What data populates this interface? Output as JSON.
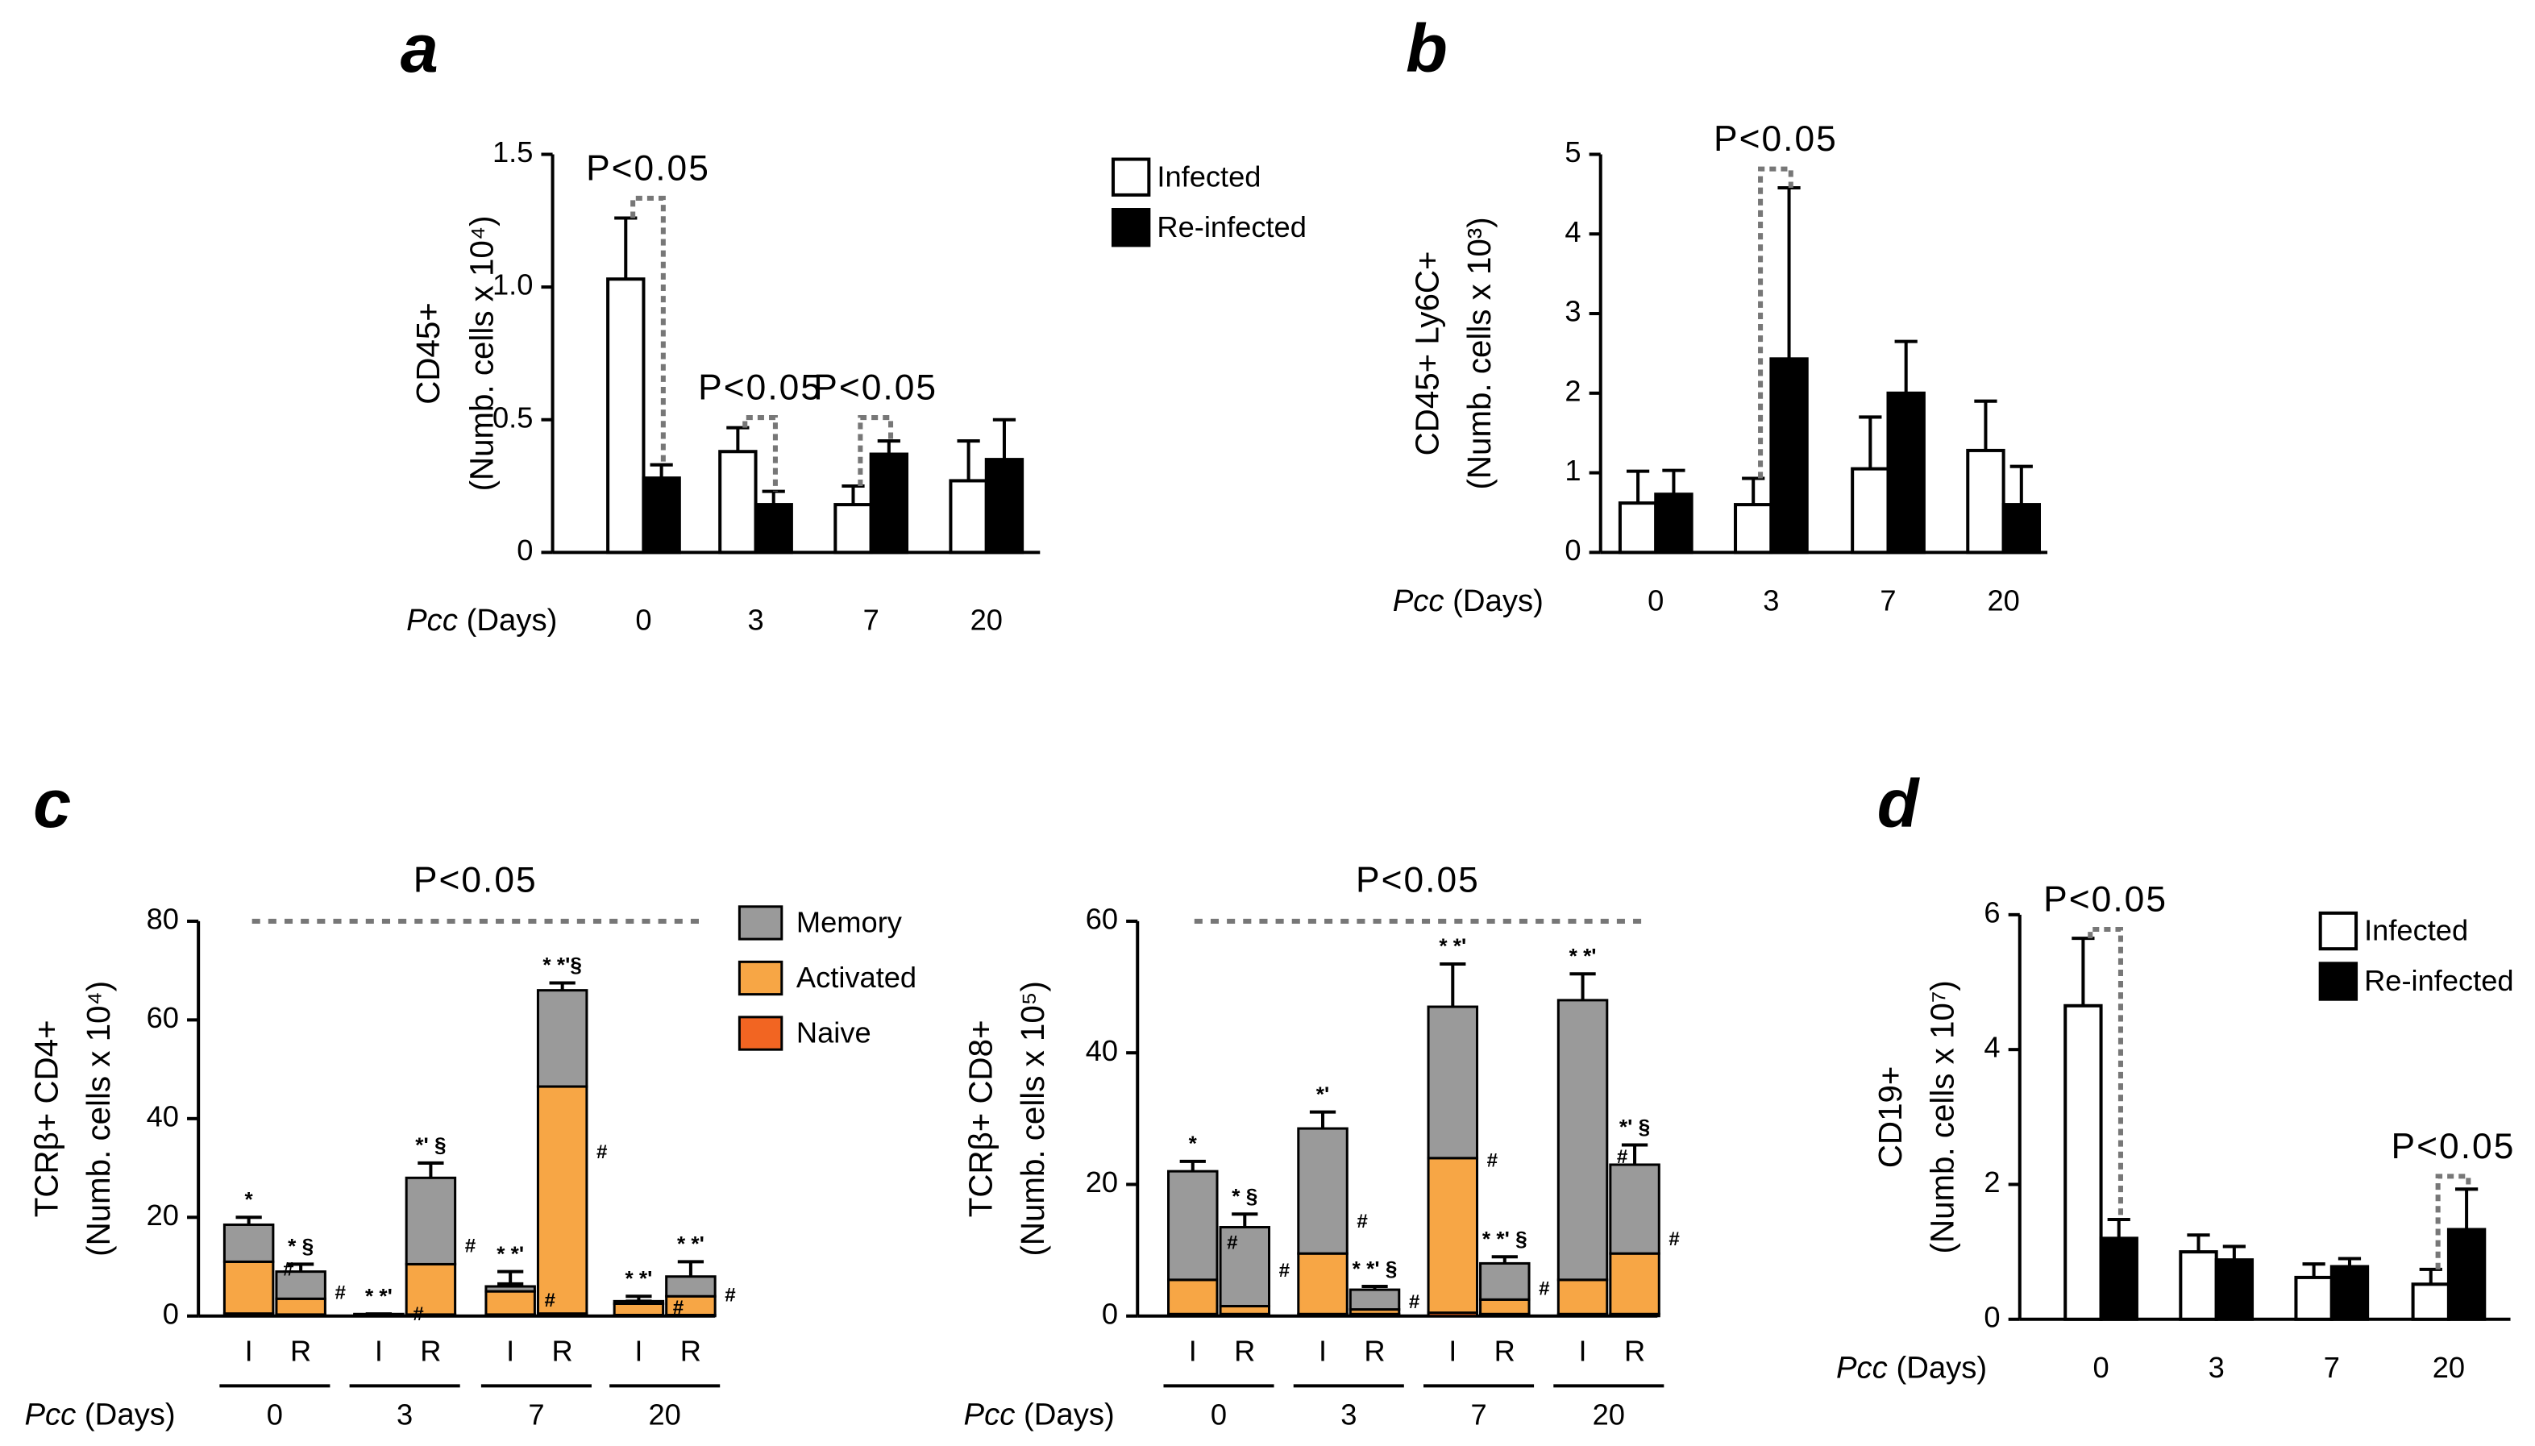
{
  "chart_data": [
    {
      "type": "bar",
      "panel": "a",
      "y_label": [
        "CD45+",
        "(Numb. cells x 10⁴)"
      ],
      "x_label": {
        "italic": "Pcc",
        "text": "(Days)"
      },
      "categories": [
        "0",
        "3",
        "7",
        "20"
      ],
      "series": [
        {
          "name": "Infected",
          "color": "#ffffff",
          "values": [
            1.03,
            0.38,
            0.18,
            0.27
          ],
          "errors": [
            0.23,
            0.09,
            0.07,
            0.15
          ]
        },
        {
          "name": "Re-infected",
          "color": "#000000",
          "values": [
            0.28,
            0.18,
            0.37,
            0.35
          ],
          "errors": [
            0.05,
            0.05,
            0.05,
            0.15
          ]
        }
      ],
      "ylim": [
        0,
        1.5
      ],
      "yticks": [
        0,
        0.5,
        {
          "value": 1,
          "label": "1.0"
        },
        1.5
      ],
      "legend": "upper right",
      "annotations": [
        "P<0.05",
        "P<0.05",
        "P<0.05"
      ]
    },
    {
      "type": "bar",
      "panel": "b",
      "y_label": [
        "CD45+ Ly6C+",
        "(Numb. cells x 10³)"
      ],
      "x_label": {
        "italic": "Pcc",
        "text": "(Days)"
      },
      "categories": [
        "0",
        "3",
        "7",
        "20"
      ],
      "series": [
        {
          "color": "#ffffff",
          "values": [
            0.62,
            0.6,
            1.05,
            1.28
          ],
          "errors": [
            0.4,
            0.33,
            0.65,
            0.62
          ]
        },
        {
          "color": "#000000",
          "values": [
            0.73,
            2.43,
            2.0,
            0.6
          ],
          "errors": [
            0.3,
            2.15,
            0.65,
            0.48
          ]
        }
      ],
      "ylim": [
        0,
        5
      ],
      "yticks": [
        0,
        1,
        2,
        3,
        4,
        5
      ],
      "annotations": [
        "P<0.05"
      ]
    },
    {
      "type": "stacked_bar",
      "panel": "c",
      "y_label": [
        "TCRβ+ CD4+",
        "(Numb. cells x 10⁴)"
      ],
      "x_label": {
        "italic": "Pcc",
        "text": "(Days)"
      },
      "categories": [
        "I",
        "R",
        "I",
        "R",
        "I",
        "R",
        "I",
        "R"
      ],
      "groups": [
        "0",
        "3",
        "7",
        "20"
      ],
      "series": [
        {
          "name": "Memory",
          "color": "#9a9a9a",
          "values": [
            7.5,
            5.5,
            0,
            17.5,
            1,
            19.5,
            0.5,
            4
          ],
          "errors": [
            1.5,
            1.5,
            0,
            3,
            3,
            1.5,
            1,
            3
          ]
        },
        {
          "name": "Activated",
          "color": "#f7a645",
          "values": [
            10.5,
            3.2,
            0.2,
            10.2,
            4.7,
            46,
            2.3,
            3.8
          ],
          "errors": [
            2,
            1,
            0,
            2,
            1.5,
            3.5,
            0.5,
            1
          ]
        },
        {
          "name": "Naive",
          "color": "#f26522",
          "values": [
            0.5,
            0.3,
            0.2,
            0.3,
            0.3,
            0.5,
            0.2,
            0.2
          ]
        }
      ],
      "bar_labels": [
        "*",
        "* §",
        "* *'",
        "*' §",
        "* *'",
        "* *'§",
        "* *'",
        "* *'"
      ],
      "side_labels": [
        "#",
        "#",
        "#",
        "#",
        "#",
        "#",
        "#",
        "#"
      ],
      "ylim": [
        0,
        80
      ],
      "yticks": [
        0,
        20,
        40,
        60,
        80
      ],
      "legend": "upper right",
      "annotations": [
        "P<0.05"
      ]
    },
    {
      "type": "stacked_bar",
      "y_label": [
        "TCRβ+ CD8+",
        "(Numb. cells x 10⁵)"
      ],
      "x_label": {
        "italic": "Pcc",
        "text": "(Days)"
      },
      "categories": [
        "I",
        "R",
        "I",
        "R",
        "I",
        "R",
        "I",
        "R"
      ],
      "groups": [
        "0",
        "3",
        "7",
        "20"
      ],
      "series": [
        {
          "color": "#9a9a9a",
          "values": [
            16.5,
            12,
            19,
            3,
            23,
            5.5,
            42.5,
            13.5
          ],
          "errors": [
            1.5,
            2,
            2.5,
            0.5,
            6.5,
            1,
            4,
            3
          ]
        },
        {
          "color": "#f7a645",
          "values": [
            5.2,
            1.2,
            9.2,
            0.7,
            23.5,
            2.2,
            5.2,
            9.2
          ],
          "errors": [
            1,
            0.5,
            1,
            0.5,
            3.5,
            0.5,
            0.5,
            2
          ]
        },
        {
          "color": "#f26522",
          "values": [
            0.3,
            0.3,
            0.3,
            0.3,
            0.5,
            0.3,
            0.3,
            0.3
          ]
        }
      ],
      "bar_labels": [
        "*",
        "* §",
        "*'",
        "* *' §",
        "* *'",
        "* *' §",
        "* *'",
        "*' §"
      ],
      "side_labels": [
        "#",
        "#",
        "#",
        "#",
        "#",
        "#",
        "#",
        "#"
      ],
      "ylim": [
        0,
        60
      ],
      "yticks": [
        0,
        20,
        40,
        60
      ],
      "annotations": [
        "P<0.05"
      ]
    },
    {
      "type": "bar",
      "panel": "d",
      "y_label": [
        "CD19+",
        "(Numb. cells x 10⁷)"
      ],
      "x_label": {
        "italic": "Pcc",
        "text": "(Days)"
      },
      "categories": [
        "0",
        "3",
        "7",
        "20"
      ],
      "series": [
        {
          "name": "Infected",
          "color": "#ffffff",
          "values": [
            4.65,
            1.0,
            0.62,
            0.52
          ],
          "errors": [
            1.0,
            0.25,
            0.2,
            0.22
          ]
        },
        {
          "name": "Re-infected",
          "color": "#000000",
          "values": [
            1.2,
            0.88,
            0.78,
            1.33
          ],
          "errors": [
            0.28,
            0.2,
            0.12,
            0.6
          ]
        }
      ],
      "ylim": [
        0,
        6
      ],
      "yticks": [
        0,
        2,
        4,
        6
      ],
      "legend": "upper right",
      "annotations": [
        "P<0.05",
        "P<0.05"
      ]
    }
  ]
}
